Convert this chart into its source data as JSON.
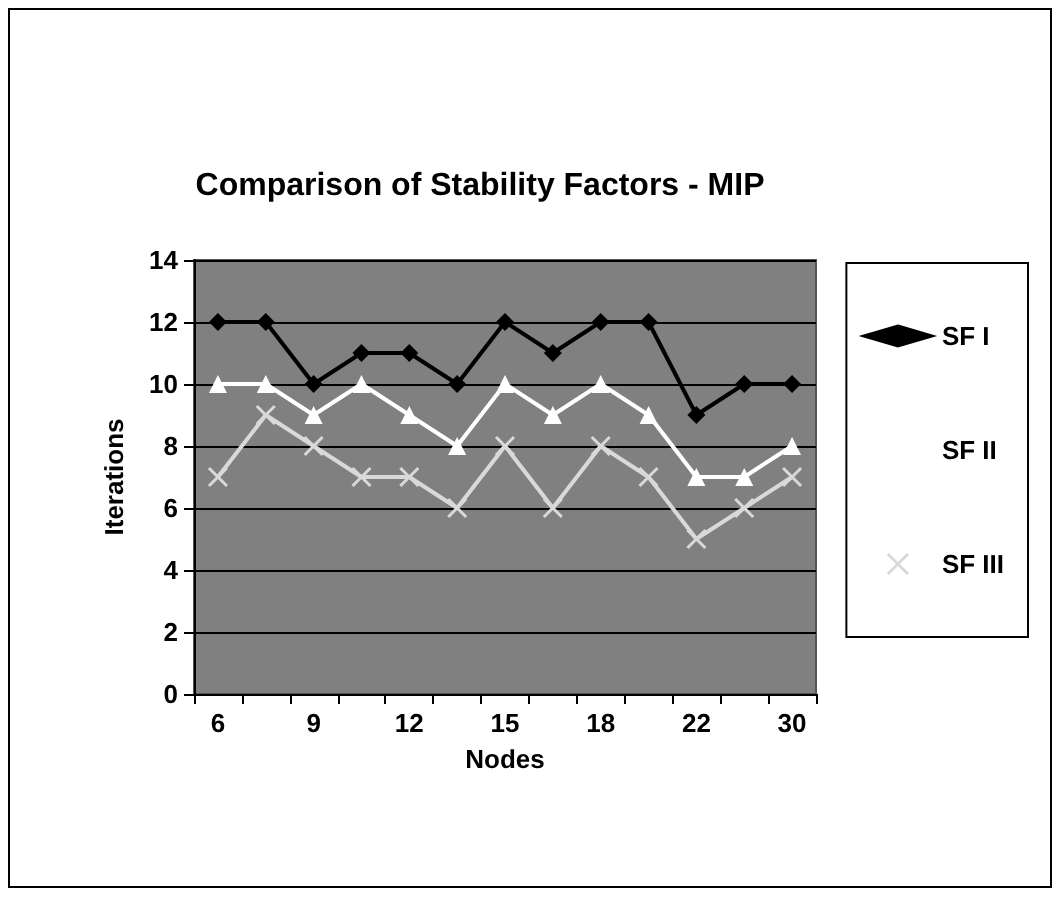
{
  "chart_data": {
    "type": "line",
    "title": "Comparison of Stability Factors - MIP",
    "xlabel": "Nodes",
    "ylabel": "Iterations",
    "categories": [
      "6",
      null,
      "9",
      null,
      "12",
      null,
      "15",
      null,
      "18",
      null,
      "22",
      null,
      "30"
    ],
    "series": [
      {
        "name": "SF I",
        "color": "#000000",
        "marker": "diamond",
        "values": [
          12,
          12,
          10,
          11,
          11,
          10,
          12,
          11,
          12,
          12,
          9,
          10,
          10
        ]
      },
      {
        "name": "SF II",
        "color": "#ffffff",
        "marker": "triangle",
        "values": [
          10,
          10,
          9,
          10,
          9,
          8,
          10,
          9,
          10,
          9,
          7,
          7,
          8
        ]
      },
      {
        "name": "SF III",
        "color": "#d9d9d9",
        "marker": "cross",
        "values": [
          7,
          9,
          8,
          7,
          7,
          6,
          8,
          6,
          8,
          7,
          5,
          6,
          7
        ]
      }
    ],
    "ylim": [
      0,
      14
    ],
    "yticks": [
      0,
      2,
      4,
      6,
      8,
      10,
      12,
      14
    ],
    "grid": "y",
    "legend": "right",
    "line_style": "solid"
  }
}
